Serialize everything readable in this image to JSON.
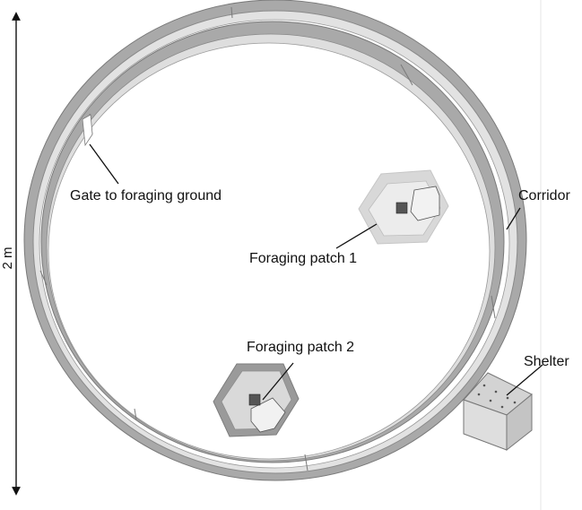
{
  "scale": {
    "label": "2 m"
  },
  "labels": {
    "gate": "Gate to foraging ground",
    "corridor": "Corridor",
    "patch1": "Foraging patch 1",
    "patch2": "Foraging patch 2",
    "shelter": "Shelter"
  },
  "colors": {
    "wall_top": "#a9a9a9",
    "wall_face": "#dcdcdc",
    "wall_edge": "#7a7a7a",
    "patch1_rim": "#d8d8d8",
    "patch2_rim": "#9a9a9a",
    "shelter_top": "#d3d3d3",
    "shelter_side": "#c4c4c4",
    "shelter_front": "#dedede"
  }
}
